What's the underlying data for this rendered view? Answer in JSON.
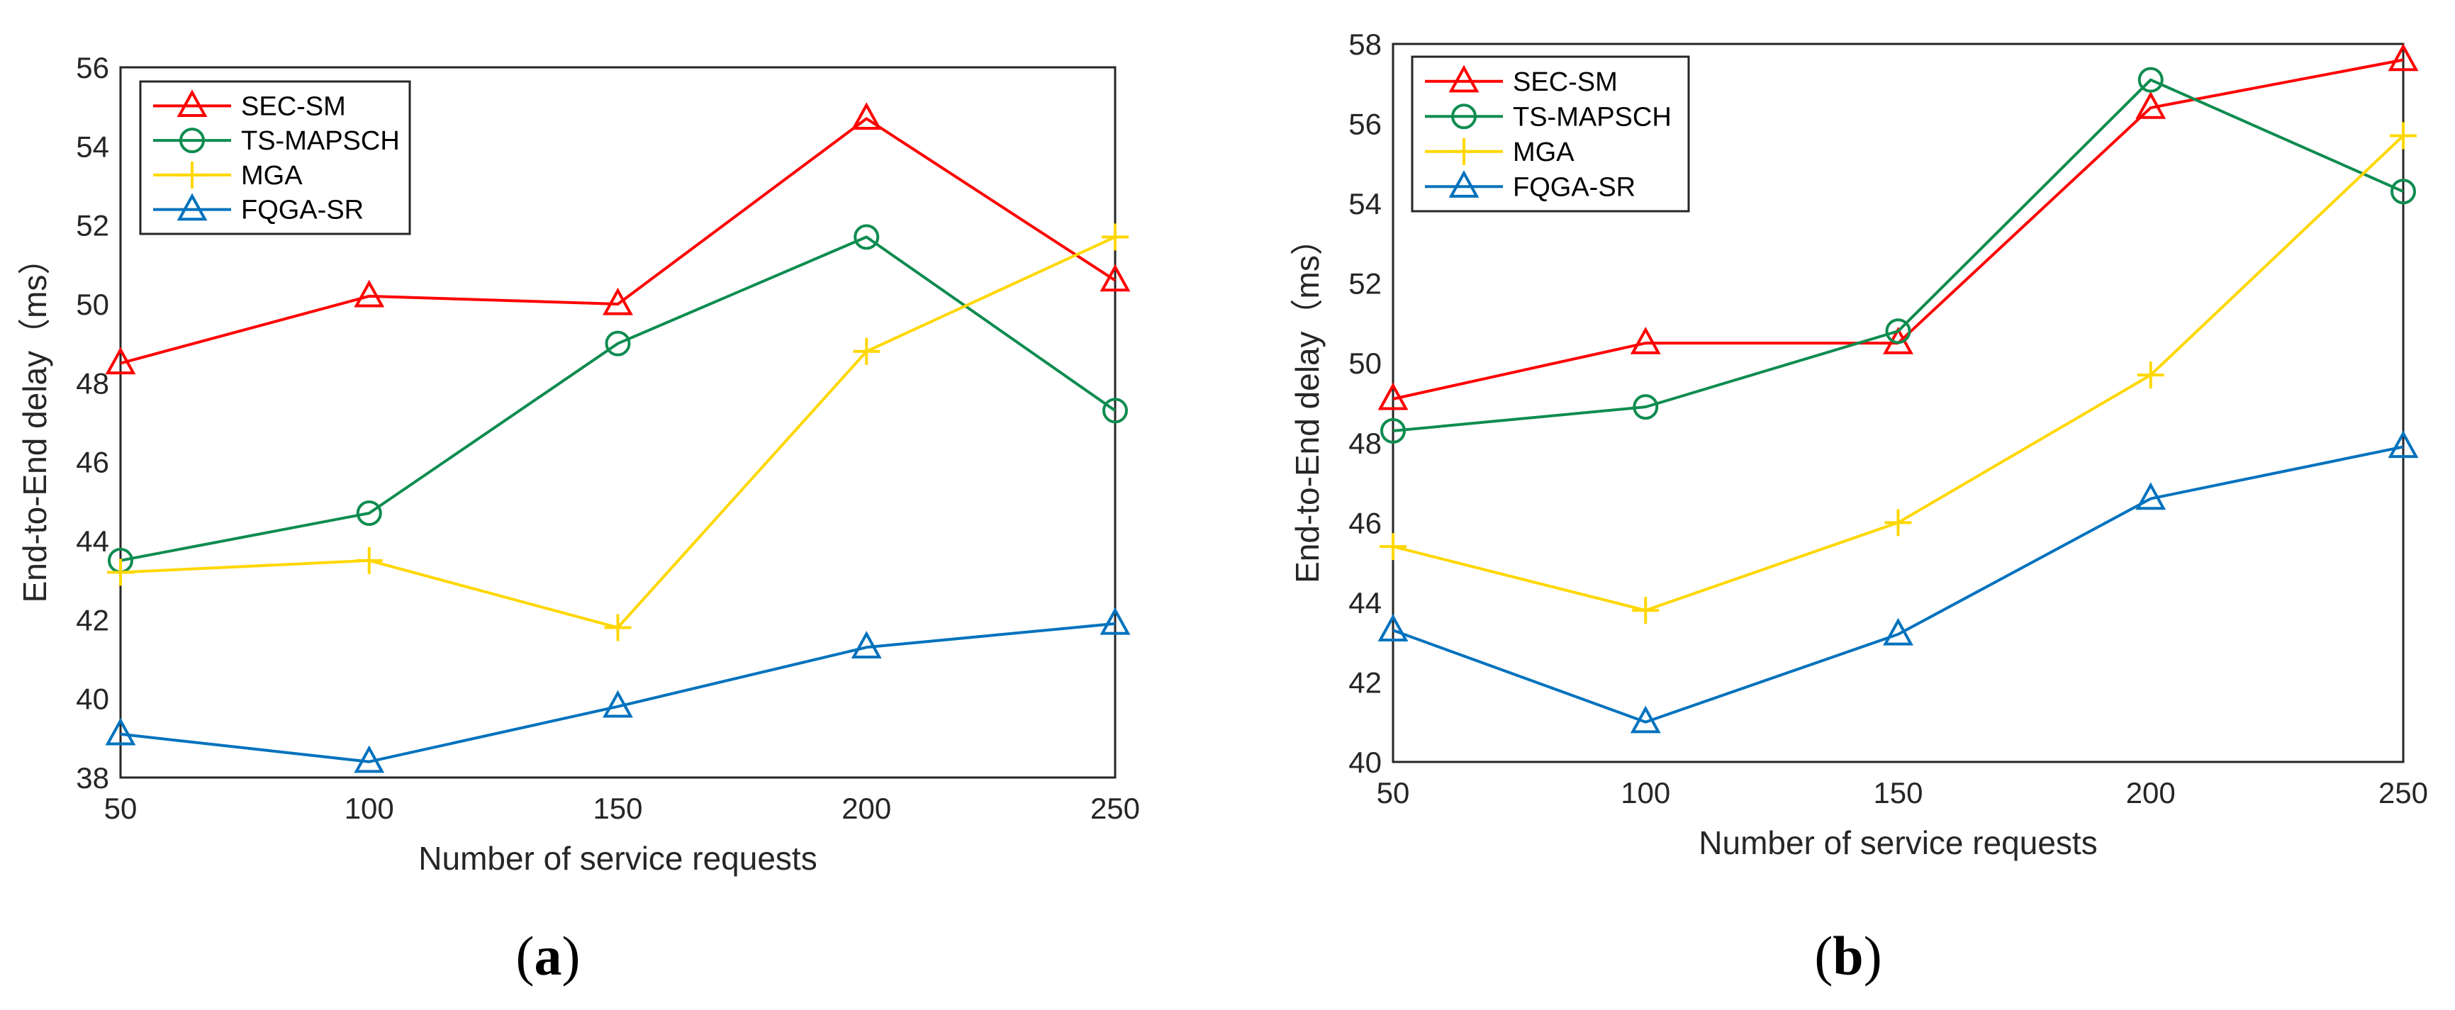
{
  "chart_data": [
    {
      "type": "line",
      "panel_label": "a",
      "title": "",
      "xlabel": "Number of service requests",
      "ylabel": "End-to-End delay（ms）",
      "x": [
        50,
        100,
        150,
        200,
        250
      ],
      "xlim": [
        50,
        250
      ],
      "ylim": [
        38,
        56
      ],
      "xticks": [
        50,
        100,
        150,
        200,
        250
      ],
      "yticks": [
        38,
        40,
        42,
        44,
        46,
        48,
        50,
        52,
        54,
        56
      ],
      "grid": true,
      "legend_position": "top-left",
      "series": [
        {
          "name": "SEC-SM",
          "color": "#ff0000",
          "marker": "triangle",
          "values": [
            48.5,
            50.2,
            50.0,
            54.7,
            50.6
          ]
        },
        {
          "name": "TS-MAPSCH",
          "color": "#0e8c50",
          "marker": "circle",
          "values": [
            43.5,
            44.7,
            49.0,
            51.7,
            47.3
          ]
        },
        {
          "name": "MGA",
          "color": "#ffd700",
          "marker": "plus",
          "values": [
            43.2,
            43.5,
            41.8,
            48.8,
            51.7
          ]
        },
        {
          "name": "FQGA-SR",
          "color": "#0072bd",
          "marker": "triangle",
          "values": [
            39.1,
            38.4,
            39.8,
            41.3,
            41.9
          ]
        }
      ]
    },
    {
      "type": "line",
      "panel_label": "b",
      "title": "",
      "xlabel": "Number of service requests",
      "ylabel": "End-to-End delay（ms）",
      "x": [
        50,
        100,
        150,
        200,
        250
      ],
      "xlim": [
        50,
        250
      ],
      "ylim": [
        40,
        58
      ],
      "xticks": [
        50,
        100,
        150,
        200,
        250
      ],
      "yticks": [
        40,
        42,
        44,
        46,
        48,
        50,
        52,
        54,
        56,
        58
      ],
      "grid": true,
      "legend_position": "top-left",
      "series": [
        {
          "name": "SEC-SM",
          "color": "#ff0000",
          "marker": "triangle",
          "values": [
            49.1,
            50.5,
            50.5,
            56.4,
            57.6
          ]
        },
        {
          "name": "TS-MAPSCH",
          "color": "#0e8c50",
          "marker": "circle",
          "values": [
            48.3,
            48.9,
            50.8,
            57.1,
            54.3
          ]
        },
        {
          "name": "MGA",
          "color": "#ffd700",
          "marker": "plus",
          "values": [
            45.4,
            43.8,
            46.0,
            49.7,
            55.7
          ]
        },
        {
          "name": "FQGA-SR",
          "color": "#0072bd",
          "marker": "triangle",
          "values": [
            43.3,
            41.0,
            43.2,
            46.6,
            47.9
          ]
        }
      ]
    }
  ]
}
